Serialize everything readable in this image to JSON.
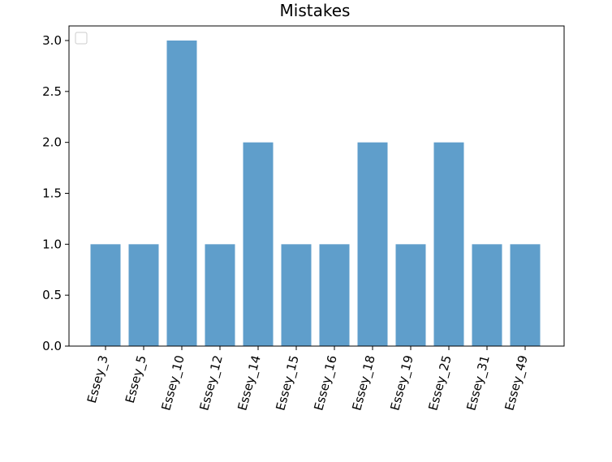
{
  "chart_data": {
    "type": "bar",
    "title": "Mistakes",
    "xlabel": "",
    "ylabel": "",
    "categories": [
      "Essey_3",
      "Essey_5",
      "Essey_10",
      "Essey_12",
      "Essey_14",
      "Essey_15",
      "Essey_16",
      "Essey_18",
      "Essey_19",
      "Essey_25",
      "Essey_31",
      "Essey_49"
    ],
    "values": [
      1,
      1,
      3,
      1,
      2,
      1,
      1,
      2,
      1,
      2,
      1,
      1
    ],
    "ylim": [
      0,
      3.0
    ],
    "yticks": [
      "0.0",
      "0.5",
      "1.0",
      "1.5",
      "2.0",
      "2.5",
      "3.0"
    ],
    "bar_color": "#5f9ecb",
    "grid": false,
    "legend": {
      "placement": "top-left",
      "entries": []
    }
  }
}
